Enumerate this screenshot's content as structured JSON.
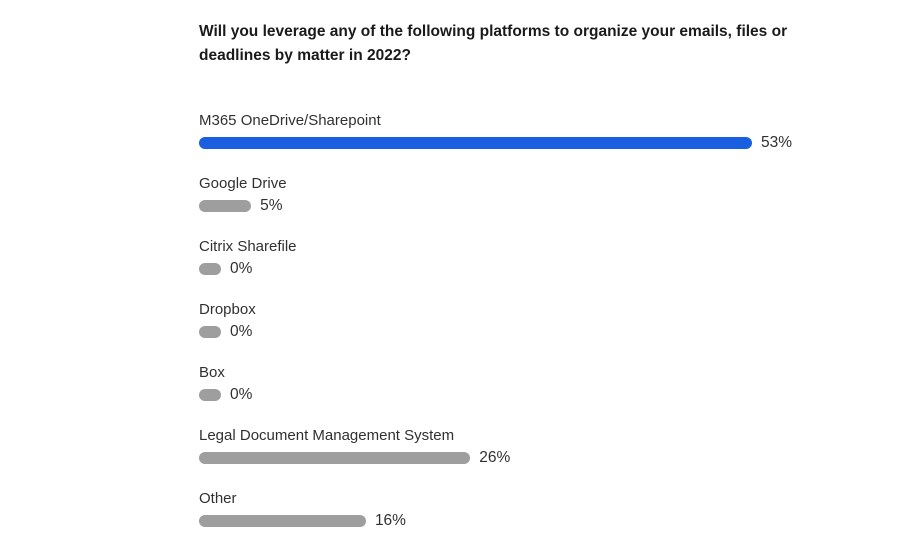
{
  "question": "Will you leverage any of the following platforms to organize your emails, files or deadlines by matter in 2022?",
  "colors": {
    "leading_bar": "#1a5fe0",
    "other_bar": "#9e9e9e"
  },
  "chart_data": {
    "type": "bar",
    "orientation": "horizontal",
    "title": "Will you leverage any of the following platforms to organize your emails, files or deadlines by matter in 2022?",
    "categories": [
      "M365 OneDrive/Sharepoint",
      "Google Drive",
      "Citrix Sharefile",
      "Dropbox",
      "Box",
      "Legal Document Management System",
      "Other"
    ],
    "values": [
      53,
      5,
      0,
      0,
      0,
      26,
      16
    ],
    "value_labels": [
      "53%",
      "5%",
      "0%",
      "0%",
      "0%",
      "26%",
      "16%"
    ],
    "unit": "%",
    "xlim": [
      0,
      53
    ],
    "grid": false,
    "highlight_index": 0
  }
}
